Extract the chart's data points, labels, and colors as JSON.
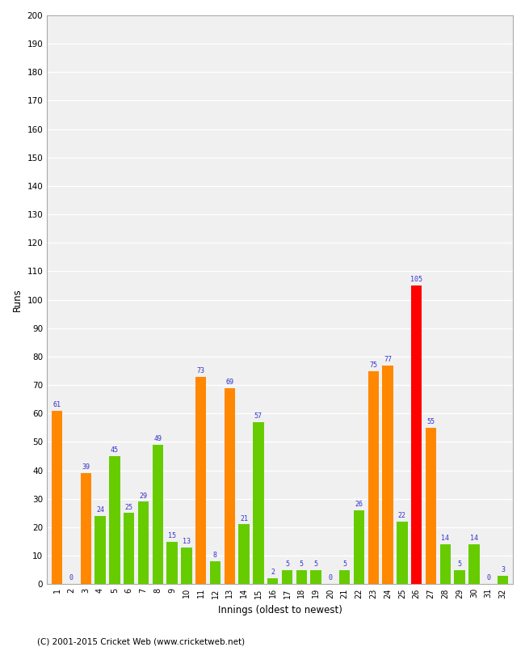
{
  "innings": [
    1,
    2,
    3,
    4,
    5,
    6,
    7,
    8,
    9,
    10,
    11,
    12,
    13,
    14,
    15,
    16,
    17,
    18,
    19,
    20,
    21,
    22,
    23,
    24,
    25,
    26,
    27,
    28,
    29,
    30,
    31,
    32
  ],
  "runs": [
    61,
    0,
    39,
    24,
    45,
    25,
    29,
    49,
    15,
    13,
    73,
    8,
    69,
    21,
    57,
    2,
    5,
    5,
    5,
    0,
    5,
    26,
    75,
    77,
    22,
    105,
    55,
    14,
    5,
    14,
    0,
    3
  ],
  "colors": [
    "#ff8800",
    "#66cc00",
    "#ff8800",
    "#66cc00",
    "#66cc00",
    "#66cc00",
    "#66cc00",
    "#66cc00",
    "#66cc00",
    "#66cc00",
    "#ff8800",
    "#66cc00",
    "#ff8800",
    "#66cc00",
    "#66cc00",
    "#66cc00",
    "#66cc00",
    "#66cc00",
    "#66cc00",
    "#66cc00",
    "#66cc00",
    "#66cc00",
    "#ff8800",
    "#ff8800",
    "#66cc00",
    "#ff0000",
    "#ff8800",
    "#66cc00",
    "#66cc00",
    "#66cc00",
    "#66cc00",
    "#66cc00"
  ],
  "ylabel": "Runs",
  "xlabel": "Innings (oldest to newest)",
  "ylim": [
    0,
    200
  ],
  "yticks": [
    0,
    10,
    20,
    30,
    40,
    50,
    60,
    70,
    80,
    90,
    100,
    110,
    120,
    130,
    140,
    150,
    160,
    170,
    180,
    190,
    200
  ],
  "footer": "(C) 2001-2015 Cricket Web (www.cricketweb.net)",
  "label_color": "#3333cc",
  "bar_width": 0.75,
  "bg_color": "#ffffff",
  "plot_bg": "#f0f0f0",
  "grid_color": "#ffffff"
}
